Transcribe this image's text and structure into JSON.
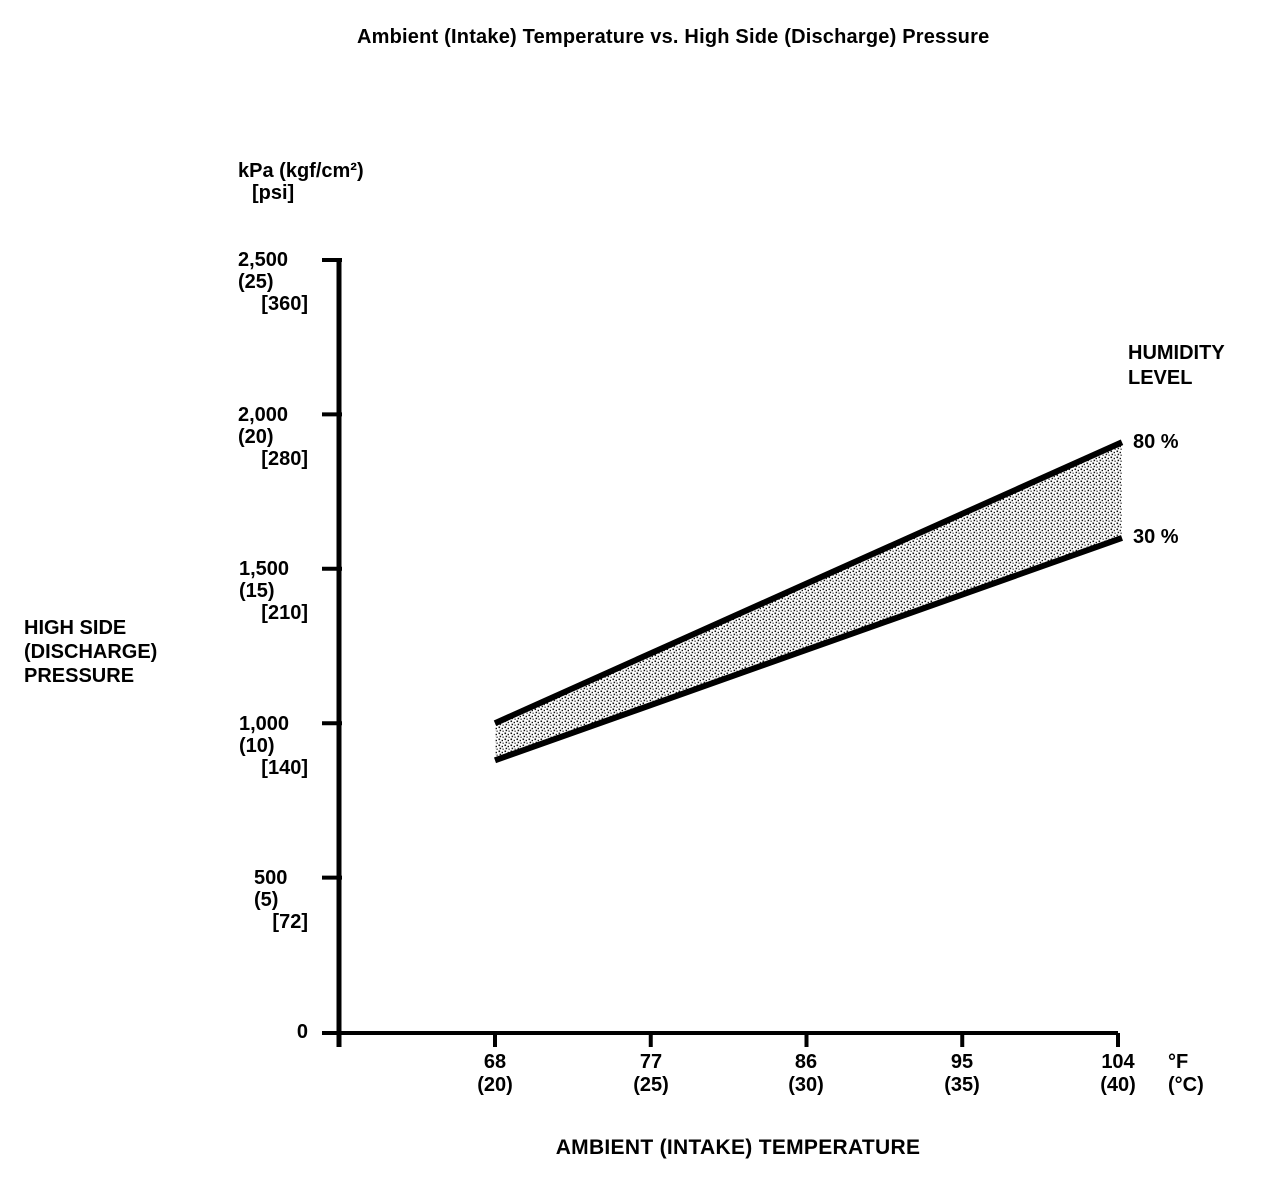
{
  "page": {
    "title": "Ambient (Intake) Temperature vs. High Side (Discharge) Pressure"
  },
  "colors": {
    "ink": "#000000",
    "background": "#ffffff",
    "band_dot": "#111111"
  },
  "y_axis": {
    "unit_lines": [
      "kPa",
      "(kgf/cm²)",
      "[psi]"
    ],
    "title_lines": [
      "HIGH SIDE",
      "(DISCHARGE)",
      "PRESSURE"
    ],
    "ticks": [
      {
        "kpa": "2,500",
        "kgf": "(25)",
        "psi": "[360]"
      },
      {
        "kpa": "2,000",
        "kgf": "(20)",
        "psi": "[280]"
      },
      {
        "kpa": "1,500",
        "kgf": "(15)",
        "psi": "[210]"
      },
      {
        "kpa": "1,000",
        "kgf": "(10)",
        "psi": "[140]"
      },
      {
        "kpa": "500",
        "kgf": "(5)",
        "psi": "[72]"
      },
      {
        "kpa": "0"
      }
    ]
  },
  "x_axis": {
    "title": "AMBIENT (INTAKE) TEMPERATURE",
    "unit_lines": [
      "°F",
      "(°C)"
    ],
    "ticks": [
      {
        "f": "68",
        "c": "(20)"
      },
      {
        "f": "77",
        "c": "(25)"
      },
      {
        "f": "86",
        "c": "(30)"
      },
      {
        "f": "95",
        "c": "(35)"
      },
      {
        "f": "104",
        "c": "(40)"
      }
    ]
  },
  "legend": {
    "title_lines": [
      "HUMIDITY",
      "LEVEL"
    ],
    "items": [
      {
        "label": "80 %"
      },
      {
        "label": "30 %"
      }
    ]
  },
  "chart_data": {
    "type": "area",
    "title": "Ambient (Intake) Temperature vs. High Side (Discharge) Pressure",
    "xlabel": "AMBIENT (INTAKE) TEMPERATURE",
    "ylabel": "HIGH SIDE (DISCHARGE) PRESSURE",
    "x_unit": "°F (°C)",
    "y_unit": "kPa (kgf/cm²) [psi]",
    "x": [
      68,
      104
    ],
    "series": [
      {
        "name": "80 %",
        "humidity_percent": 80,
        "values_kpa": [
          1000,
          1910
        ]
      },
      {
        "name": "30 %",
        "humidity_percent": 30,
        "values_kpa": [
          880,
          1600
        ]
      }
    ],
    "band_between_series": true,
    "band_fill": "halftone-gray",
    "xlim": [
      68,
      104
    ],
    "ylim": [
      0,
      2500
    ],
    "x_ticks": [
      {
        "f": 68,
        "c": 20
      },
      {
        "f": 77,
        "c": 25
      },
      {
        "f": 86,
        "c": 30
      },
      {
        "f": 95,
        "c": 35
      },
      {
        "f": 104,
        "c": 40
      }
    ],
    "y_ticks": [
      {
        "kpa": 0
      },
      {
        "kpa": 500,
        "kgf": 5,
        "psi": 72
      },
      {
        "kpa": 1000,
        "kgf": 10,
        "psi": 140
      },
      {
        "kpa": 1500,
        "kgf": 15,
        "psi": 210
      },
      {
        "kpa": 2000,
        "kgf": 20,
        "psi": 280
      },
      {
        "kpa": 2500,
        "kgf": 25,
        "psi": 360
      }
    ],
    "grid": false,
    "legend_position": "right"
  }
}
